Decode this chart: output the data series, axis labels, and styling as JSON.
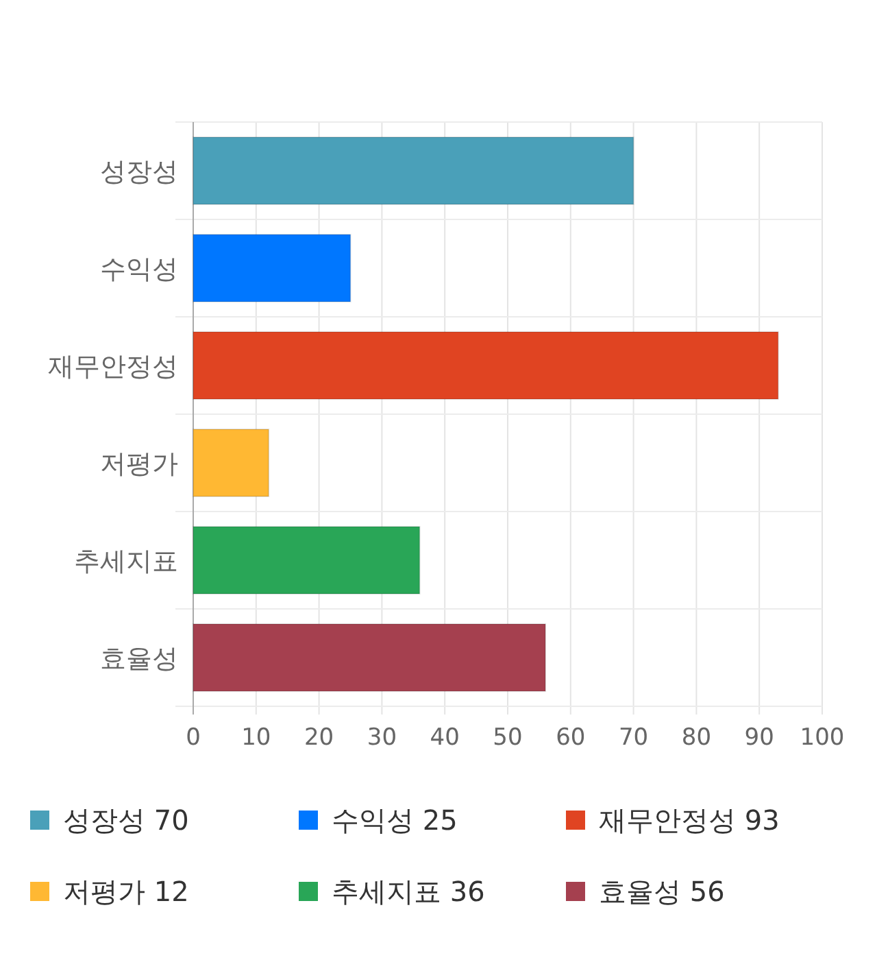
{
  "chart_data": {
    "type": "bar",
    "orientation": "horizontal",
    "stacked": true,
    "categories": [
      "성장성",
      "수익성",
      "재무안정성",
      "저평가",
      "추세지표",
      "효율성"
    ],
    "series": [
      {
        "name": "성장성 70",
        "color": "#4aa0b9",
        "values": [
          70,
          null,
          null,
          null,
          null,
          null
        ]
      },
      {
        "name": "수익성 25",
        "color": "#0077ff",
        "values": [
          null,
          25,
          null,
          null,
          null,
          null
        ]
      },
      {
        "name": "재무안정성 93",
        "color": "#e04422",
        "values": [
          null,
          null,
          93,
          null,
          null,
          null
        ]
      },
      {
        "name": "저평가 12",
        "color": "#ffb833",
        "values": [
          null,
          null,
          null,
          12,
          null,
          null
        ]
      },
      {
        "name": "추세지표 36",
        "color": "#29a657",
        "values": [
          null,
          null,
          null,
          null,
          36,
          null
        ]
      },
      {
        "name": "효율성 56",
        "color": "#a5404f",
        "values": [
          null,
          null,
          null,
          null,
          null,
          56
        ]
      }
    ],
    "xlim": [
      0,
      100
    ],
    "xticks": [
      0,
      10,
      20,
      30,
      40,
      50,
      60,
      70,
      80,
      90,
      100
    ],
    "grid": true,
    "legend": "bottom"
  }
}
